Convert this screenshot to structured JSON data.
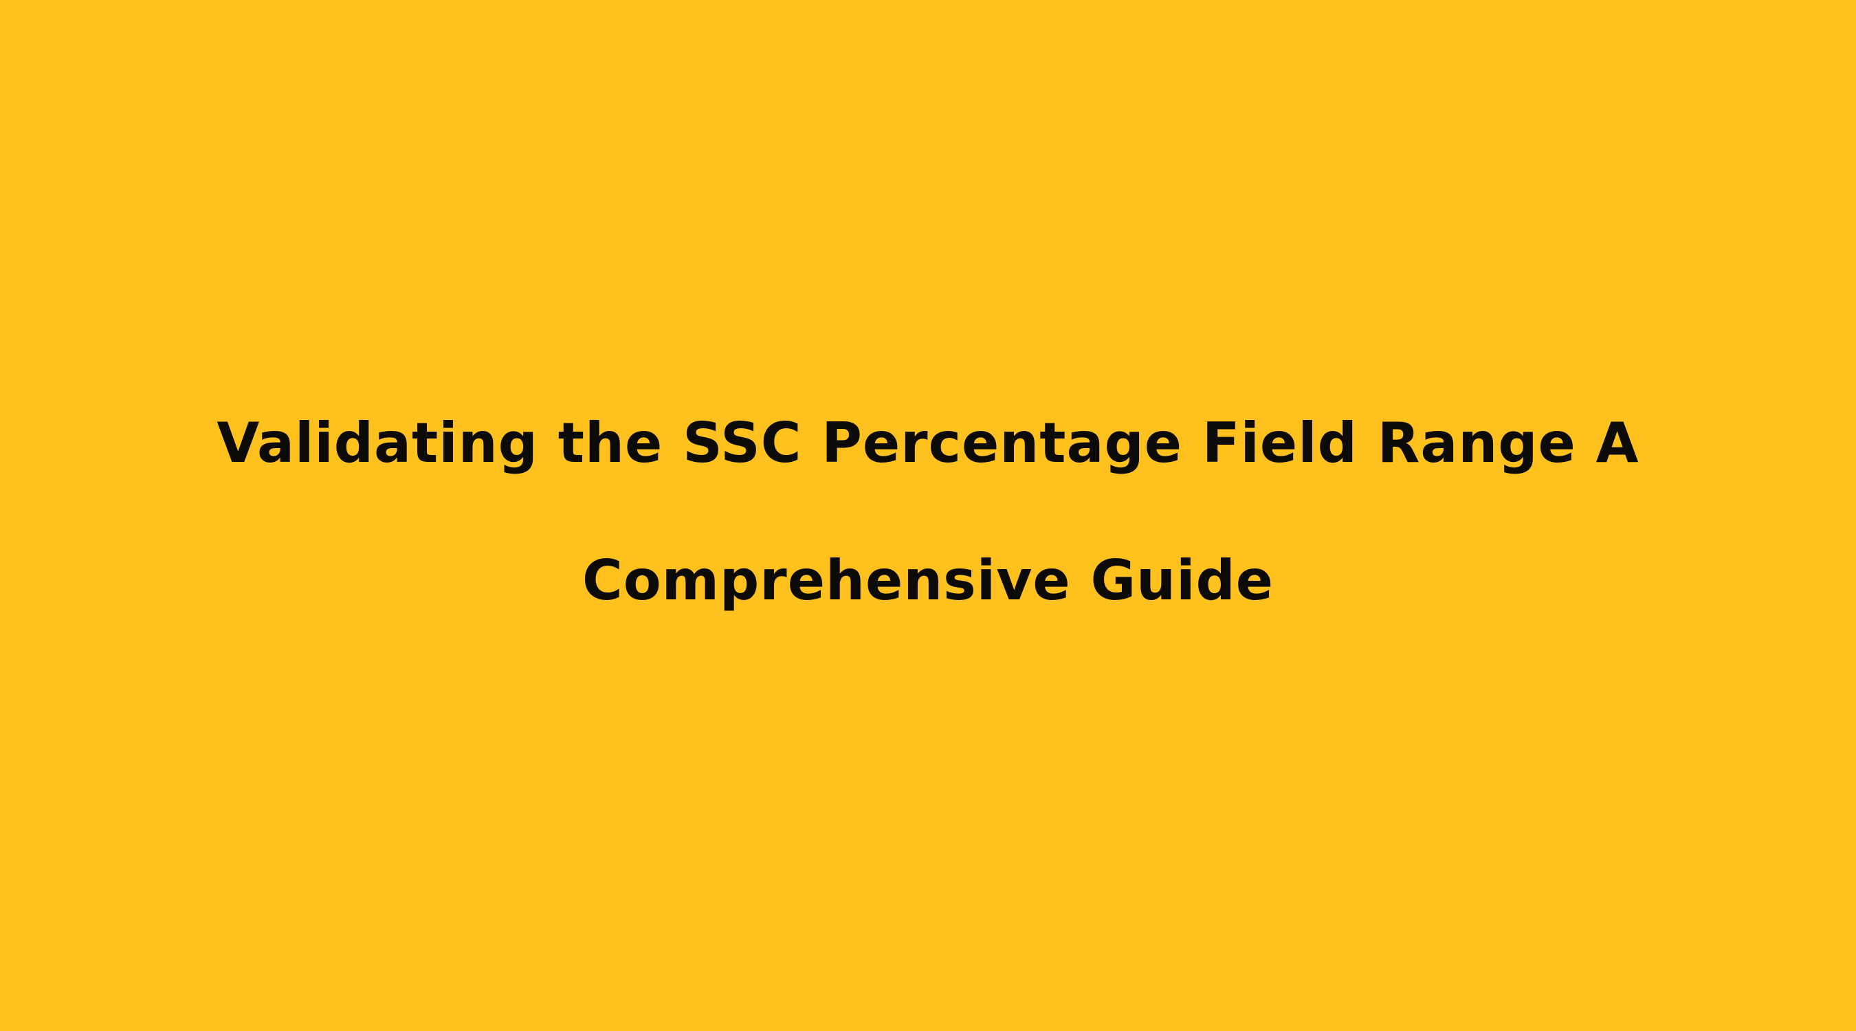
{
  "heading": {
    "lines": [
      "Validating the SSC Percentage Field Range A",
      "Comprehensive Guide"
    ]
  }
}
